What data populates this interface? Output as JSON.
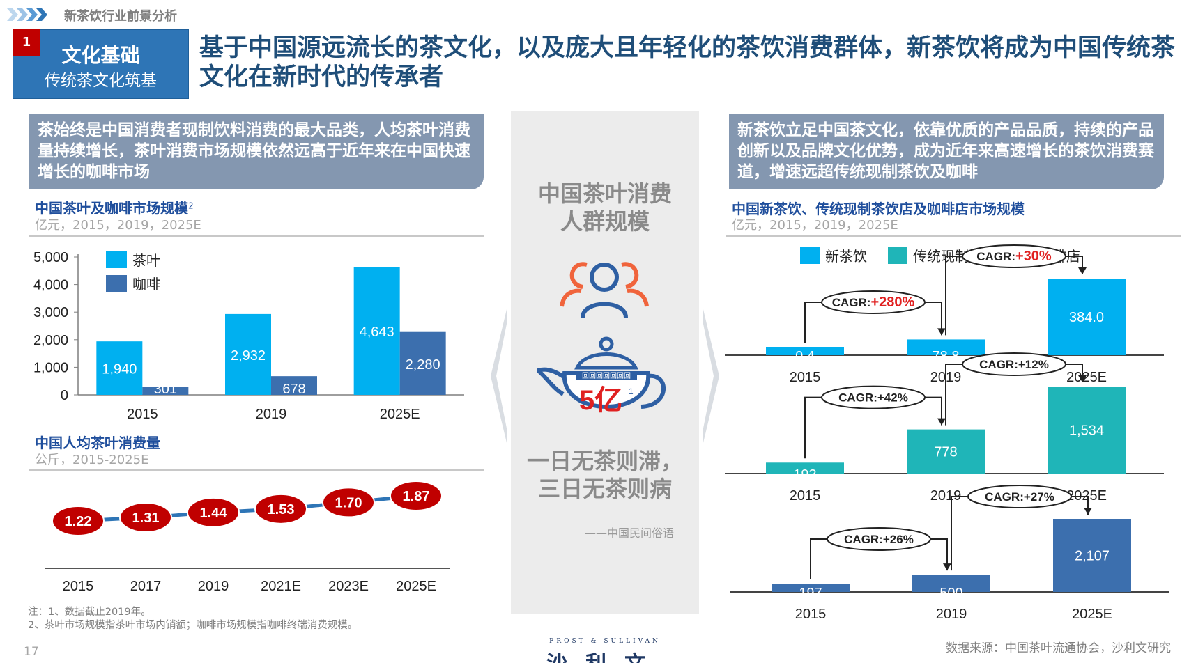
{
  "header": {
    "breadcrumb": "新茶饮行业前景分析"
  },
  "section": {
    "number": "1",
    "title": "文化基础",
    "subtitle": "传统茶文化筑基"
  },
  "headline": "基于中国源远流长的茶文化，以及庞大且年轻化的茶饮消费群体，新茶饮将成为中国传统茶文化在新时代的传承者",
  "left": {
    "callout": "茶始终是中国消费者现制饮料消费的最大品类，人均茶叶消费量持续增长，茶叶消费市场规模依然远高于近年来在中国快速增长的咖啡市场",
    "chart1_title": "中国茶叶及咖啡市场规模",
    "chart1_title_sup": "2",
    "chart1_sub": "亿元，2015，2019，2025E",
    "chart2_title": "中国人均茶叶消费量",
    "chart2_sub": "公斤，2015-2025E"
  },
  "center": {
    "title_line1": "中国茶叶消费",
    "title_line2": "人群规模",
    "teapot_value": "5亿",
    "teapot_sup": "1",
    "teapot_pattern": "回回回回回回回",
    "proverb_line1": "一日无茶则滞，",
    "proverb_line2": "三日无茶则病",
    "proverb_source": "——中国民间俗语"
  },
  "right": {
    "callout": "新茶饮立足中国茶文化，依靠优质的产品品质，持续的产品创新以及品牌文化优势，成为近年来高速增长的茶饮消费赛道，增速远超传统现制茶饮及咖啡",
    "chart_title": "中国新茶饮、传统现制茶饮店及咖啡店市场规模",
    "chart_sub": "亿元，2015，2019，2025E"
  },
  "footer": {
    "notes_line1": "注：1、数据截止2019年。",
    "notes_line2": "2、茶叶市场规模指茶叶市场内销额；咖啡市场规模指咖啡终端消费规模。",
    "page": "17",
    "source": "数据来源：中国茶叶流通协会，沙利文研究",
    "logo_en": "FROST & SULLIVAN",
    "logo_cn": "沙利文"
  },
  "chart_data": [
    {
      "id": "tea-coffee",
      "type": "bar",
      "categories": [
        "2015",
        "2019",
        "2025E"
      ],
      "series": [
        {
          "name": "茶叶",
          "color": "#00b0f0",
          "values": [
            1940,
            2932,
            4643
          ],
          "labels": [
            "1,940",
            "2,932",
            "4,643"
          ]
        },
        {
          "name": "咖啡",
          "color": "#3c6fae",
          "values": [
            301,
            678,
            2280
          ],
          "labels": [
            "301",
            "678",
            "2,280"
          ]
        }
      ],
      "yticks": [
        0,
        1000,
        2000,
        3000,
        4000,
        5000
      ],
      "ytick_labels": [
        "0",
        "1,000",
        "2,000",
        "3,000",
        "4,000",
        "5,000"
      ],
      "ylim": [
        0,
        5000
      ]
    },
    {
      "id": "per-capita",
      "type": "line",
      "categories": [
        "2015",
        "2017",
        "2019",
        "2021E",
        "2023E",
        "2025E"
      ],
      "values": [
        1.22,
        1.31,
        1.44,
        1.53,
        1.7,
        1.87
      ],
      "labels": [
        "1.22",
        "1.31",
        "1.44",
        "1.53",
        "1.70",
        "1.87"
      ],
      "line_color": "#2e75b6",
      "marker_color": "#c00000"
    },
    {
      "id": "market-three",
      "type": "bar",
      "legend": [
        {
          "name": "新茶饮",
          "color": "#00b0f0"
        },
        {
          "name": "传统现制茶饮",
          "color": "#1fb5b8"
        },
        {
          "name": "咖啡店",
          "color": "#3c6fae"
        }
      ],
      "panels": [
        {
          "series": "新茶饮",
          "color": "#00b0f0",
          "categories": [
            "2015",
            "2019",
            "2025E"
          ],
          "values": [
            0.4,
            78.8,
            384.0
          ],
          "labels": [
            "0.4",
            "78.8",
            "384.0"
          ],
          "cagr1_prefix": "CAGR:",
          "cagr1_value": "+280%",
          "cagr2_prefix": "CAGR:",
          "cagr2_value": "+30%",
          "highlight": true
        },
        {
          "series": "传统现制茶饮",
          "color": "#1fb5b8",
          "categories": [
            "2015",
            "2019",
            "2025E"
          ],
          "values": [
            193,
            778,
            1534
          ],
          "labels": [
            "193",
            "778",
            "1,534"
          ],
          "cagr1_prefix": "CAGR:",
          "cagr1_value": "+42%",
          "cagr2_prefix": "CAGR:",
          "cagr2_value": "+12%",
          "highlight": false
        },
        {
          "series": "咖啡店",
          "color": "#3c6fae",
          "categories": [
            "2015",
            "2019",
            "2025E"
          ],
          "values": [
            197,
            500,
            2107
          ],
          "labels": [
            "197",
            "500",
            "2,107"
          ],
          "cagr1_prefix": "CAGR:",
          "cagr1_value": "+26%",
          "cagr2_prefix": "CAGR:",
          "cagr2_value": "+27%",
          "highlight": false
        }
      ]
    }
  ]
}
